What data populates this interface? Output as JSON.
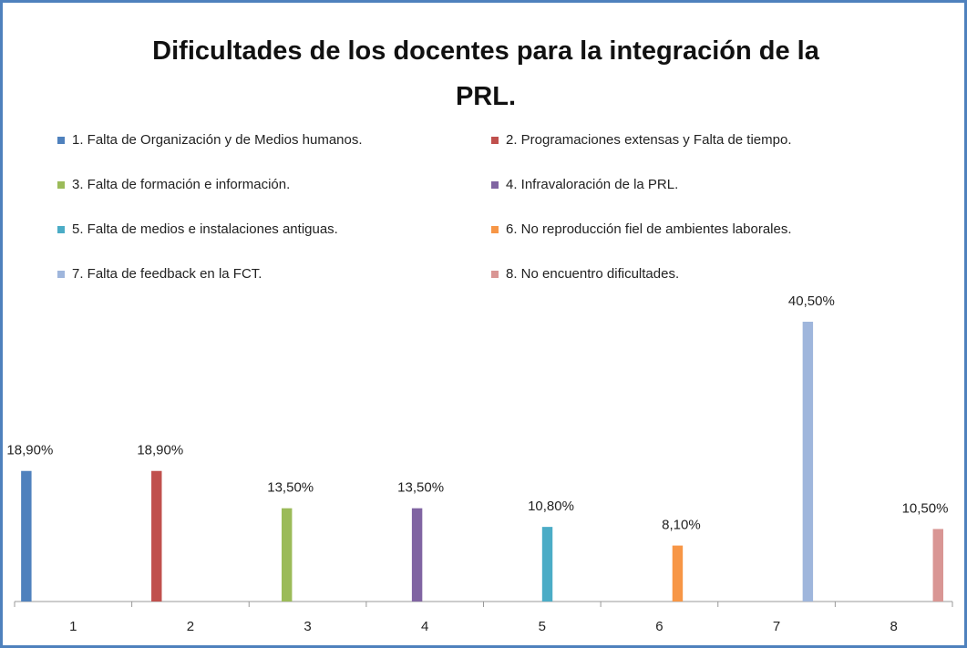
{
  "chart_data": {
    "type": "bar",
    "title": "Dificultades de los docentes para la integración de la PRL.",
    "categories": [
      "1",
      "2",
      "3",
      "4",
      "5",
      "6",
      "7",
      "8"
    ],
    "series": [
      {
        "name": "1. Falta de Organización y de Medios humanos.",
        "color": "#4f81bd",
        "values": [
          18.9,
          null,
          null,
          null,
          null,
          null,
          null,
          null
        ],
        "value_labels": [
          "18,90%",
          null,
          null,
          null,
          null,
          null,
          null,
          null
        ]
      },
      {
        "name": "2. Programaciones extensas y Falta de tiempo.",
        "color": "#c0504d",
        "values": [
          null,
          18.9,
          null,
          null,
          null,
          null,
          null,
          null
        ],
        "value_labels": [
          null,
          "18,90%",
          null,
          null,
          null,
          null,
          null,
          null
        ]
      },
      {
        "name": "3. Falta de formación e información.",
        "color": "#9bbb59",
        "values": [
          null,
          null,
          13.5,
          null,
          null,
          null,
          null,
          null
        ],
        "value_labels": [
          null,
          null,
          "13,50%",
          null,
          null,
          null,
          null,
          null
        ]
      },
      {
        "name": "4. Infravaloración de la PRL.",
        "color": "#8064a2",
        "values": [
          null,
          null,
          null,
          13.5,
          null,
          null,
          null,
          null
        ],
        "value_labels": [
          null,
          null,
          null,
          "13,50%",
          null,
          null,
          null,
          null
        ]
      },
      {
        "name": "5. Falta de medios e instalaciones antiguas.",
        "color": "#4bacc6",
        "values": [
          null,
          null,
          null,
          null,
          10.8,
          null,
          null,
          null
        ],
        "value_labels": [
          null,
          null,
          null,
          null,
          "10,80%",
          null,
          null,
          null
        ]
      },
      {
        "name": "6. No reproducción fiel de ambientes laborales.",
        "color": "#f79646",
        "values": [
          null,
          null,
          null,
          null,
          null,
          8.1,
          null,
          null
        ],
        "value_labels": [
          null,
          null,
          null,
          null,
          null,
          "8,10%",
          null,
          null
        ]
      },
      {
        "name": "7. Falta de feedback en la FCT.",
        "color": "#9fb6dc",
        "values": [
          null,
          null,
          null,
          null,
          null,
          null,
          40.5,
          null
        ],
        "value_labels": [
          null,
          null,
          null,
          null,
          null,
          null,
          "40,50%",
          null
        ]
      },
      {
        "name": "8. No encuentro dificultades.",
        "color": "#d99694",
        "values": [
          null,
          null,
          null,
          null,
          null,
          null,
          null,
          10.5
        ],
        "value_labels": [
          null,
          null,
          null,
          null,
          null,
          null,
          null,
          "10,50%"
        ]
      }
    ],
    "legend": "top"
  }
}
